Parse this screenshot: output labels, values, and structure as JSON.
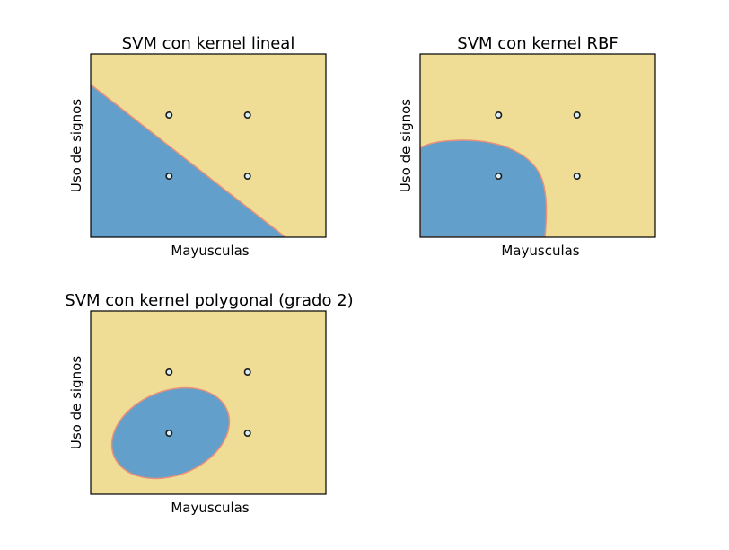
{
  "chart_data": [
    {
      "type": "scatter",
      "title": "SVM con kernel lineal",
      "xlabel": "Mayusculas",
      "ylabel": "Uso de signos",
      "xlim": [
        -1,
        2
      ],
      "ylim": [
        -1,
        2
      ],
      "xticks": [],
      "yticks": [],
      "grid": false,
      "colors": {
        "class_0": "#62a0cb",
        "class_1": "#f0dd95",
        "boundary": "#e8917a",
        "point_edge": "#1b1b1b",
        "point_face": "#d9eef5"
      },
      "regions": {
        "class_0": "lower-left of diagonal boundary",
        "class_1": "upper-right"
      },
      "points": [
        {
          "x": 0,
          "y": 0
        },
        {
          "x": 1,
          "y": 0
        },
        {
          "x": 0,
          "y": 1
        },
        {
          "x": 1,
          "y": 1
        }
      ]
    },
    {
      "type": "scatter",
      "title": "SVM con kernel RBF",
      "xlabel": "Mayusculas",
      "ylabel": "Uso de signos",
      "xlim": [
        -1,
        2
      ],
      "ylim": [
        -1,
        2
      ],
      "xticks": [],
      "yticks": [],
      "grid": false,
      "colors": {
        "class_0": "#62a0cb",
        "class_1": "#f0dd95",
        "boundary": "#e8917a",
        "point_edge": "#1b1b1b",
        "point_face": "#d9eef5"
      },
      "regions": {
        "class_0": "rounded region around (0,0), lower-left",
        "class_1": "rest"
      },
      "points": [
        {
          "x": 0,
          "y": 0
        },
        {
          "x": 1,
          "y": 0
        },
        {
          "x": 0,
          "y": 1
        },
        {
          "x": 1,
          "y": 1
        }
      ]
    },
    {
      "type": "scatter",
      "title": "SVM con kernel polygonal (grado 2)",
      "xlabel": "Mayusculas",
      "ylabel": "Uso de signos",
      "xlim": [
        -1,
        2
      ],
      "ylim": [
        -1,
        2
      ],
      "xticks": [],
      "yticks": [],
      "grid": false,
      "colors": {
        "class_0": "#62a0cb",
        "class_1": "#f0dd95",
        "boundary": "#e8917a",
        "point_edge": "#1b1b1b",
        "point_face": "#d9eef5"
      },
      "regions": {
        "class_0": "ellipse around (0,0)",
        "class_1": "rest"
      },
      "points": [
        {
          "x": 0,
          "y": 0
        },
        {
          "x": 1,
          "y": 0
        },
        {
          "x": 0,
          "y": 1
        },
        {
          "x": 1,
          "y": 1
        }
      ]
    }
  ]
}
